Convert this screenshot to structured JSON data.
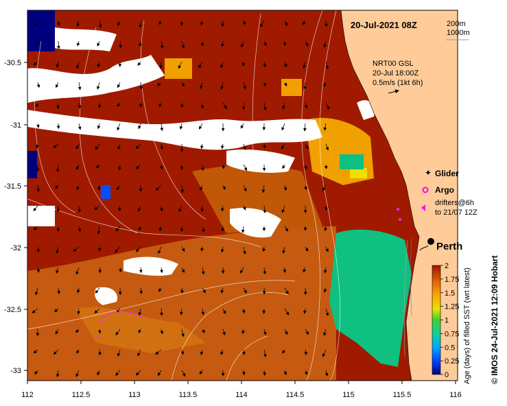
{
  "map": {
    "date_label": "20-Jul-2021 08Z",
    "isobath_legend": [
      "200m",
      "1000m"
    ],
    "current_source": "NRT00 GSL",
    "current_time": "20-Jul 18:00Z",
    "current_scale": "0.5m/s (1kt 6h)",
    "city": "Perth",
    "legend": {
      "glider": "Glider",
      "argo": "Argo",
      "drifters_line1": "drifters@6h",
      "drifters_line2": "to 21/07 12Z"
    },
    "x_ticks": [
      "112",
      "112.5",
      "113",
      "113.5",
      "114",
      "114.5",
      "115",
      "115.5",
      "116"
    ],
    "y_ticks": [
      "-30.5",
      "-31",
      "-31.5",
      "-32",
      "-32.5",
      "-33"
    ],
    "colorbar": {
      "label": "Age (days) of filled SST (wrt latest)",
      "ticks": [
        "0",
        "0.25",
        "0.5",
        "0.75",
        "1",
        "1.25",
        "1.5",
        "1.75",
        "2"
      ],
      "colors": [
        "#00007f",
        "#0050ff",
        "#00c0ff",
        "#10d090",
        "#60d020",
        "#e8e000",
        "#ffa000",
        "#e06000",
        "#a01500"
      ]
    },
    "credit": "© IMOS 24-Jul-2021 12:09 Hobart",
    "colors": {
      "land": "#ffcc99",
      "dark_red": "#a01a00",
      "brown_orange": "#c55a10",
      "orange": "#f0a000",
      "green": "#10c080",
      "cloud": "#ffffff"
    }
  }
}
